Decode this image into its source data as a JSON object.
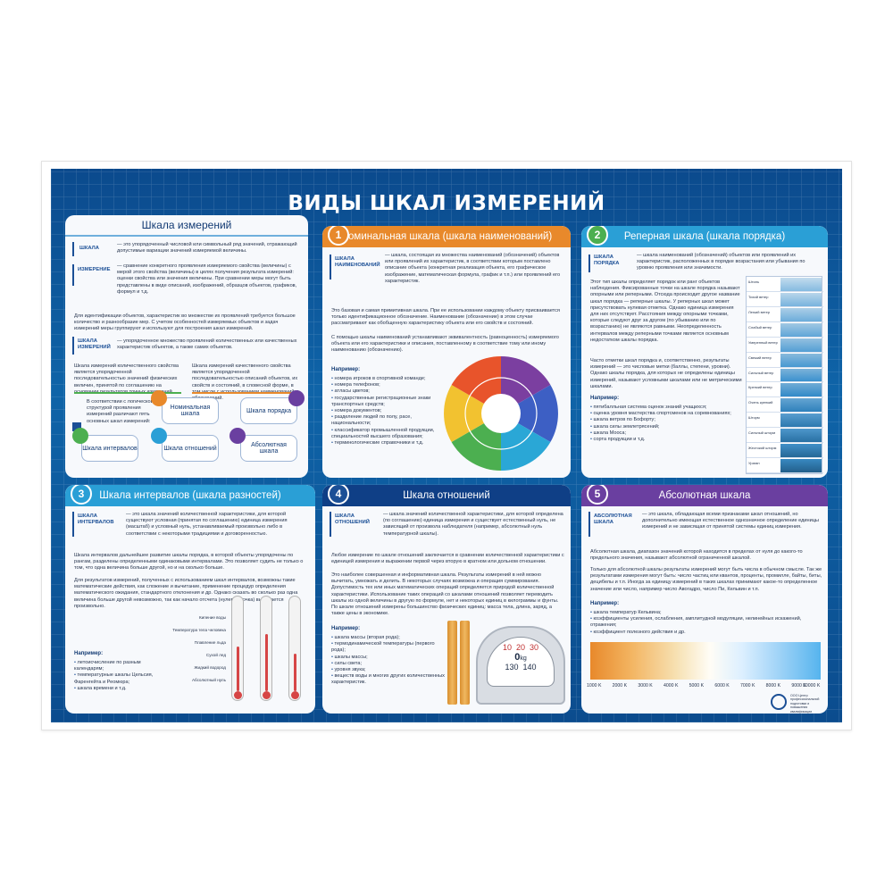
{
  "poster": {
    "title": "ВИДЫ ШКАЛ ИЗМЕРЕНИЙ",
    "colors": {
      "navy": "#0b4a8d",
      "orange": "#e8892b",
      "green": "#4caf50",
      "teal": "#2a9fd6",
      "purple": "#6a3fa0",
      "blue": "#1b4f96"
    }
  },
  "panels": {
    "intro": {
      "title": "Шкала измерений",
      "term1": "ШКАЛА",
      "def1": "— это упорядоченный числовой или символьный ряд значений, отражающий допустимые вариации значений измеряемой величины.",
      "term2": "ИЗМЕРЕНИЕ",
      "def2": "— сравнение конкретного проявления измеряемого свойства (величины) с мерой этого свойства (величины) в целях получения результата измерений: оценки свойства или значения величины. При сравнении меры могут быть представлены в виде описаний, изображений, образцов объектов, графиков, формул и т.д.",
      "para1": "Для идентификации объектов, характеристик во множестве их проявлений требуется большое количество и разнообразие мер. С учетом особенностей измеряемых объектов и задач измерений меры группируют и используют для построения шкал измерений.",
      "term3": "ШКАЛА ИЗМЕРЕНИЙ",
      "def3": "— упорядоченное множество проявлений количественных или качественных характеристик объектов, а также самих объектов.",
      "col1": "Шкала измерений количественного свойства является упорядоченной последовательностью значений физических величин, принятой по соглашению на основании результатов точных измерений.",
      "col2": "Шкала измерений качественного свойства является упорядоченной последовательностью описаний объектов, их свойств и состояний, в словесной форме, в том числе с использованием наименований и обозначений.",
      "note": "В соответствии с логической структурой проявления измерений различают пять основных шкал измерений:",
      "cells": [
        "Номинальная шкала",
        "Шкала порядка",
        "Шкала интервалов",
        "Шкала отношений",
        "Абсолютная шкала"
      ],
      "nums": [
        "1",
        "2",
        "3",
        "4",
        "5"
      ]
    },
    "nominal": {
      "title": "Номинальная шкала (шкала наименований)",
      "num": "1",
      "term": "ШКАЛА НАИМЕНОВАНИЙ",
      "def": "— шкала, состоящая из множества наименований (обозначений) объектов или проявлений их характеристик, в соответствии которым поставлено описание объекта (конкретная реализация объекта, его графическое изображение, математическая формула, график и т.п.) или проявлений его характеристик.",
      "para1": "Это базовая и самая примитивная шкала. При ее использовании каждому объекту присваивается только идентификационное обозначение. Наименование (обозначение) в этом случае рассматривают как обобщенную характеристику объекта или его свойств и состояний.",
      "para2": "С помощью шкалы наименований устанавливают эквивалентность (равноценность) измеряемого объекта или его характеристики и описания, поставленному в соответствие тому или иному наименованию (обозначению).",
      "examples_title": "Например:",
      "examples": [
        "номера игроков в спортивной команде;",
        "номера телефонов;",
        "атласы цветов;",
        "государственные регистрационные знаки транспортных средств;",
        "номера документов;",
        "разделение людей по полу, расе, национальности;",
        "классификатор промышленной продукции, специальностей высшего образования;",
        "терминологические справочники и т.д."
      ]
    },
    "order": {
      "title": "Реперная шкала (шкала порядка)",
      "num": "2",
      "term": "ШКАЛА ПОРЯДКА",
      "def": "— шкала наименований (обозначений) объектов или проявлений их характеристик, расположенных в порядке возрастания или убывания по уровню проявления или значимости.",
      "para1": "Этот тип шкалы определяет порядок или ранг объектов наблюдения. Фиксированные точки на шкале порядка называют опорными или реперными. Отсюда происходит другое название шкал порядка — реперные шкалы. У реперных шкал может присутствовать нулевая отметка. Однако единица измерения для них отсутствует. Расстояния между опорными точками, которые следуют друг за другом (по убыванию или по возрастанию) не являются равными. Неопределенность интервалов между реперными точками является основным недостатком шкалы порядка.",
      "para2": "Часто отметки шкал порядка и, соответственно, результаты измерений — это числовые метки (баллы, степени, уровни). Однако шкалы порядка, для которых не определены единицы измерений, называют условными шкалами или не метрическими шкалами.",
      "examples_title": "Например:",
      "examples": [
        "пятибалльная система оценок знаний учащихся;",
        "оценка уровня мастерства спортсменов на соревнованиях;",
        "шкала ветров по Бофорту;",
        "шкала силы землетрясений;",
        "шкала Мооса;",
        "сорта продукции и т.д."
      ],
      "beaufort": [
        "Штиль",
        "Тихий ветер",
        "Легкий ветер",
        "Слабый ветер",
        "Умеренный ветер",
        "Свежий ветер",
        "Сильный ветер",
        "Крепкий ветер",
        "Очень крепкий",
        "Шторм",
        "Сильный шторм",
        "Жестокий шторм",
        "Ураган"
      ]
    },
    "interval": {
      "title": "Шкала интервалов (шкала разностей)",
      "num": "3",
      "term": "ШКАЛА ИНТЕРВАЛОВ",
      "def": "— это шкала значений количественной характеристики, для которой существуют условная (принятая по соглашению) единица измерения (масштаб) и условный нуль, устанавливаемый произвольно либо в соответствии с некоторыми традициями и договоренностью.",
      "para1": "Шкала интервалов дальнейшее развитие шкалы порядка, в которой объекты упорядочены по рангам, разделены определенными одинаковыми интервалами. Это позволяет судить не только о том, что одна величина больше другой, но и на сколько больше.",
      "para2": "Для результатов измерений, полученных с использованием шкал интервалов, возможны такие математические действия, как сложение и вычитание, применение процедур определения математического ожидания, стандартного отклонения и др. Однако сказать во сколько раз одна величина больше другой невозможно, так как начало отсчета (нулевая точка) выбирается произвольно.",
      "thermo_labels": [
        "Кипение воды",
        "Температура тела человека",
        "Плавление льда",
        "Сухой лед",
        "Жидкий водород",
        "Абсолютный нуль"
      ],
      "examples_title": "Например:",
      "examples": [
        "летоисчисление по разным календарям;",
        "температурные шкалы Цельсия, Фаренгейта и Реомюра;",
        "шкала времени и т.д."
      ]
    },
    "ratio": {
      "title": "Шкала отношений",
      "num": "4",
      "term": "ШКАЛА ОТНОШЕНИЙ",
      "def": "— шкала значений количественной характеристики, для которой определена (по соглашению) единица измерения и существует естественный нуль, не зависящий от произвола наблюдателя (например, абсолютный нуль температурной шкалы).",
      "para1": "Любое измерение по шкале отношений заключается в сравнении количественной характеристики с единицей измерения и выражении первой через вторую в кратном или дольном отношении.",
      "para2": "Это наиболее совершенная и информативная шкала. Результаты измерений в ней можно вычитать, умножать и делить. В некоторых случаях возможна и операция суммирования. Допустимость тех или иных математических операций определяется природой количественной характеристики. Использование таких операций со шкалами отношений позволяет переводить шкалы из одной величины в другую по формуле, нет и некоторых единиц в килограммы и фунты.",
      "para3": "По шкале отношений измерены большинство физических единиц: масса тела, длина, заряд, а также цены в экономике.",
      "examples_title": "Например:",
      "examples": [
        "шкала массы (вторая рода);",
        "термодинамической температуры (первого рода);",
        "шкалы массы;",
        "силы света;",
        "уровня звука;",
        "веществ воды и многих других количественных характеристик."
      ],
      "scale_marks": [
        "10",
        "20",
        "30",
        "0",
        "kg",
        "130",
        "140"
      ]
    },
    "absolute": {
      "title": "Абсолютная шкала",
      "num": "5",
      "term": "АБСОЛЮТНАЯ ШКАЛА",
      "def": "— это шкала, обладающая всеми признаками шкал отношений, но дополнительно имеющая естественное однозначное определение единицы измерений и не зависящая от принятой системы единиц измерения.",
      "para1": "Абсолютная шкала, диапазон значений которой находится в пределах от нуля до какого-то предельного значения, называют абсолютной ограниченной шкалой.",
      "para2": "Только для абсолютной шкалы результаты измерений могут быть числа в обычном смысле. Так же результатами измерения могут быть: число частиц или квантов, проценты, промилле, байты, биты, децибелы и т.п. Иногда за единицу измерений в таких шкалах принимают какое-то определенное значение или число, например число Авогадро, число Пи, Кельвин и т.п.",
      "examples_title": "Например:",
      "examples": [
        "шкала температур Кельвина;",
        "коэффициенты усиления, ослабления, амплитудной модуляции, нелинейных искажений, отражения;",
        "коэффициент полезного действия и др."
      ],
      "axis_ticks": [
        "1000 K",
        "2000 K",
        "3000 K",
        "4000 K",
        "5000 K",
        "6000 K",
        "7000 K",
        "8000 K",
        "9000 K",
        "10000 K"
      ],
      "publisher": "ООО Центр профессиональной подготовки и повышения квалификации"
    }
  }
}
